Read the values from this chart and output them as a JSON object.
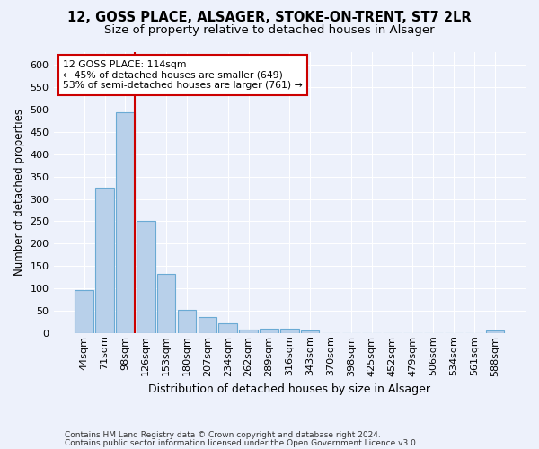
{
  "title1": "12, GOSS PLACE, ALSAGER, STOKE-ON-TRENT, ST7 2LR",
  "title2": "Size of property relative to detached houses in Alsager",
  "xlabel": "Distribution of detached houses by size in Alsager",
  "ylabel": "Number of detached properties",
  "categories": [
    "44sqm",
    "71sqm",
    "98sqm",
    "126sqm",
    "153sqm",
    "180sqm",
    "207sqm",
    "234sqm",
    "262sqm",
    "289sqm",
    "316sqm",
    "343sqm",
    "370sqm",
    "398sqm",
    "425sqm",
    "452sqm",
    "479sqm",
    "506sqm",
    "534sqm",
    "561sqm",
    "588sqm"
  ],
  "values": [
    97,
    325,
    495,
    250,
    133,
    51,
    36,
    22,
    8,
    10,
    10,
    5,
    0,
    0,
    0,
    0,
    0,
    0,
    0,
    0,
    5
  ],
  "bar_color": "#b8d0ea",
  "bar_edge_color": "#6aaad4",
  "annotation_text_line1": "12 GOSS PLACE: 114sqm",
  "annotation_text_line2": "← 45% of detached houses are smaller (649)",
  "annotation_text_line3": "53% of semi-detached houses are larger (761) →",
  "annotation_box_facecolor": "#ffffff",
  "annotation_box_edgecolor": "#cc0000",
  "vline_color": "#cc0000",
  "background_color": "#edf1fb",
  "grid_color": "#ffffff",
  "footer1": "Contains HM Land Registry data © Crown copyright and database right 2024.",
  "footer2": "Contains public sector information licensed under the Open Government Licence v3.0.",
  "ylim_max": 630,
  "yticks": [
    0,
    50,
    100,
    150,
    200,
    250,
    300,
    350,
    400,
    450,
    500,
    550,
    600
  ],
  "title1_fontsize": 10.5,
  "title2_fontsize": 9.5,
  "xlabel_fontsize": 9,
  "ylabel_fontsize": 8.5,
  "tick_fontsize": 8,
  "footer_fontsize": 6.5,
  "annotation_fontsize": 7.8
}
